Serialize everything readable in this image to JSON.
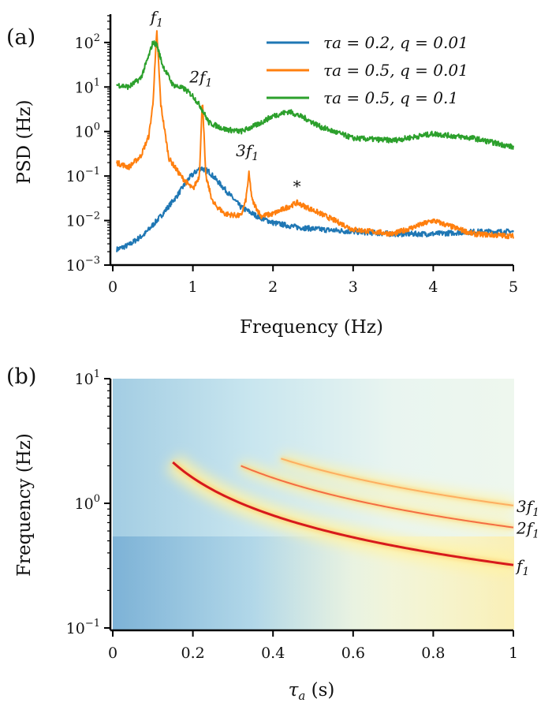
{
  "chart_data": [
    {
      "type": "line",
      "panel_label": "(a)",
      "xlabel": "Frequency (Hz)",
      "ylabel": "PSD (Hz)",
      "xlim": [
        0,
        5
      ],
      "ylim_log10": [
        -3,
        2.6
      ],
      "y_scale": "log",
      "x_ticks": [
        0,
        1,
        2,
        3,
        4,
        5
      ],
      "x_tick_labels": [
        "0",
        "1",
        "2",
        "3",
        "4",
        "5"
      ],
      "y_ticks_log10": [
        -3,
        -2,
        -1,
        0,
        1,
        2
      ],
      "y_tick_labels": [
        {
          "base": "10",
          "exp": "−3"
        },
        {
          "base": "10",
          "exp": "−2"
        },
        {
          "base": "10",
          "exp": "−1"
        },
        {
          "base": "10",
          "exp": "0"
        },
        {
          "base": "10",
          "exp": "1"
        },
        {
          "base": "10",
          "exp": "2"
        }
      ],
      "legend_position": "top-right",
      "series": [
        {
          "name": "τa = 0.2, q = 0.01",
          "color": "#1f77b4",
          "x": [
            0.05,
            0.2,
            0.4,
            0.6,
            0.8,
            0.95,
            1.05,
            1.1,
            1.2,
            1.4,
            1.6,
            1.8,
            2.0,
            2.3,
            2.6,
            3.0,
            3.5,
            4.0,
            4.5,
            5.0
          ],
          "log10_y": [
            -2.65,
            -2.55,
            -2.3,
            -1.9,
            -1.45,
            -1.05,
            -0.88,
            -0.82,
            -0.9,
            -1.3,
            -1.7,
            -1.9,
            -2.05,
            -2.15,
            -2.2,
            -2.25,
            -2.3,
            -2.3,
            -2.25,
            -2.25
          ]
        },
        {
          "name": "τa = 0.5, q = 0.01",
          "color": "#ff7f0e",
          "x": [
            0.05,
            0.2,
            0.35,
            0.45,
            0.5,
            0.55,
            0.6,
            0.7,
            0.85,
            1.0,
            1.08,
            1.12,
            1.16,
            1.25,
            1.4,
            1.6,
            1.66,
            1.7,
            1.74,
            1.85,
            2.0,
            2.3,
            2.6,
            3.0,
            3.5,
            4.0,
            4.5,
            5.0
          ],
          "log10_y": [
            -0.7,
            -0.8,
            -0.55,
            -0.1,
            0.6,
            2.25,
            0.6,
            -0.6,
            -1.0,
            -1.3,
            -1.0,
            0.75,
            -1.0,
            -1.6,
            -1.85,
            -1.9,
            -1.55,
            -0.95,
            -1.55,
            -1.9,
            -1.85,
            -1.6,
            -1.85,
            -2.2,
            -2.3,
            -2.0,
            -2.3,
            -2.35
          ]
        },
        {
          "name": "τa = 0.5, q = 0.1",
          "color": "#2ca02c",
          "x": [
            0.05,
            0.2,
            0.35,
            0.45,
            0.5,
            0.55,
            0.62,
            0.75,
            0.9,
            1.0,
            1.1,
            1.2,
            1.4,
            1.6,
            1.8,
            2.0,
            2.2,
            2.4,
            2.6,
            3.0,
            3.5,
            4.0,
            4.5,
            5.0
          ],
          "log10_y": [
            1.05,
            1.0,
            1.2,
            1.7,
            2.0,
            1.95,
            1.5,
            1.05,
            0.95,
            0.8,
            0.55,
            0.2,
            0.05,
            0.0,
            0.15,
            0.35,
            0.45,
            0.3,
            0.1,
            -0.15,
            -0.2,
            -0.05,
            -0.15,
            -0.35
          ]
        }
      ],
      "annotations": [
        {
          "text": "f",
          "sub": "1",
          "x": 0.55,
          "log10_y": 2.45
        },
        {
          "text": "2f",
          "sub": "1",
          "x": 1.1,
          "log10_y": 1.1
        },
        {
          "text": "3f",
          "sub": "1",
          "x": 1.68,
          "log10_y": -0.55
        },
        {
          "text": "*",
          "x": 2.3,
          "log10_y": -1.35
        }
      ]
    },
    {
      "type": "heatmap",
      "panel_label": "(b)",
      "xlabel": "τa (s)",
      "xlabel_main": "τ",
      "xlabel_sub": "a",
      "xlabel_unit": " (s)",
      "ylabel": "Frequency (Hz)",
      "xlim": [
        0,
        1
      ],
      "ylim_log10": [
        -1,
        1
      ],
      "y_scale": "log",
      "x_ticks": [
        0,
        0.2,
        0.4,
        0.6,
        0.8,
        1
      ],
      "x_tick_labels": [
        "0",
        "0.2",
        "0.4",
        "0.6",
        "0.8",
        "1"
      ],
      "y_ticks_log10": [
        -1,
        0,
        1
      ],
      "y_tick_labels": [
        {
          "base": "10",
          "exp": "−1"
        },
        {
          "base": "10",
          "exp": "0"
        },
        {
          "base": "10",
          "exp": "1"
        }
      ],
      "colormap": "RdYlBu_r",
      "ridges": [
        {
          "label": "f",
          "sub": "1",
          "relation": "f = 0.32 / τa",
          "x_start": 0.15,
          "x_end": 1.0,
          "color": "#d7191c"
        },
        {
          "label": "2f",
          "sub": "1",
          "relation": "f = 0.64 / τa",
          "x_start": 0.32,
          "x_end": 1.0,
          "color": "#f46d43"
        },
        {
          "label": "3f",
          "sub": "1",
          "relation": "f = 0.96 / τa",
          "x_start": 0.42,
          "x_end": 1.0,
          "color": "#fdae61"
        }
      ]
    }
  ]
}
